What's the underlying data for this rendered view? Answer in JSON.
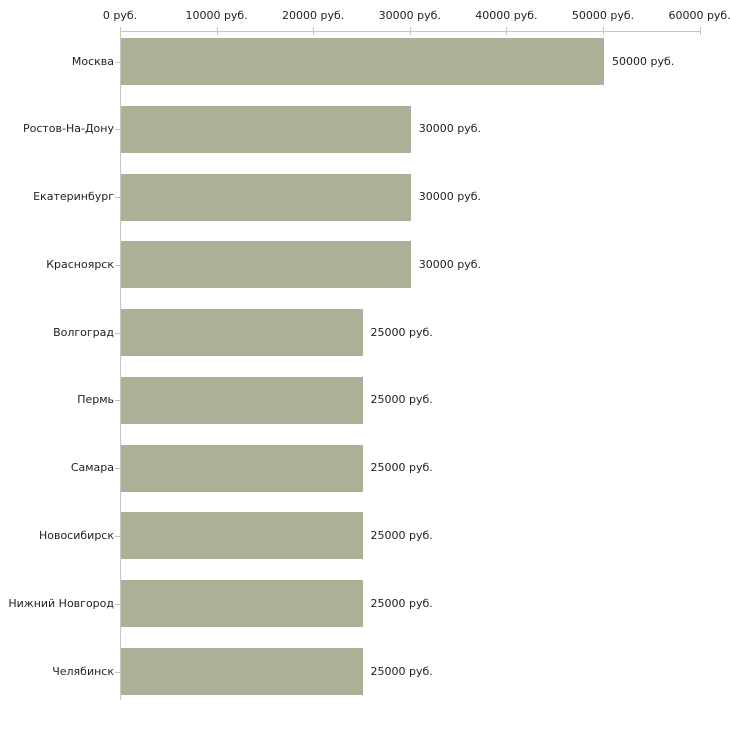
{
  "chart_data": {
    "type": "bar",
    "orientation": "horizontal",
    "title": "",
    "xlabel": "",
    "ylabel": "",
    "categories": [
      "Москва",
      "Ростов-На-Дону",
      "Екатеринбург",
      "Красноярск",
      "Волгоград",
      "Пермь",
      "Самара",
      "Новосибирск",
      "Нижний Новгород",
      "Челябинск"
    ],
    "values": [
      50000,
      30000,
      30000,
      30000,
      25000,
      25000,
      25000,
      25000,
      25000,
      25000
    ],
    "bar_value_labels": [
      "50000 руб.",
      "30000 руб.",
      "30000 руб.",
      "30000 руб.",
      "25000 руб.",
      "25000 руб.",
      "25000 руб.",
      "25000 руб.",
      "25000 руб.",
      "25000 руб."
    ],
    "x_axis": {
      "position": "top",
      "range": [
        0,
        60000
      ],
      "ticks": [
        0,
        10000,
        20000,
        30000,
        40000,
        50000,
        60000
      ],
      "tick_labels": [
        "0 руб.",
        "10000 руб.",
        "20000 руб.",
        "30000 руб.",
        "40000 руб.",
        "50000 руб.",
        "60000 руб."
      ]
    },
    "legend": "none",
    "grid": "off",
    "colors": {
      "bar": "#abb096",
      "axis": "#c6c6c6",
      "tick": "#cdc6a0",
      "text": "#1f1f1f",
      "background": "#ffffff"
    }
  }
}
